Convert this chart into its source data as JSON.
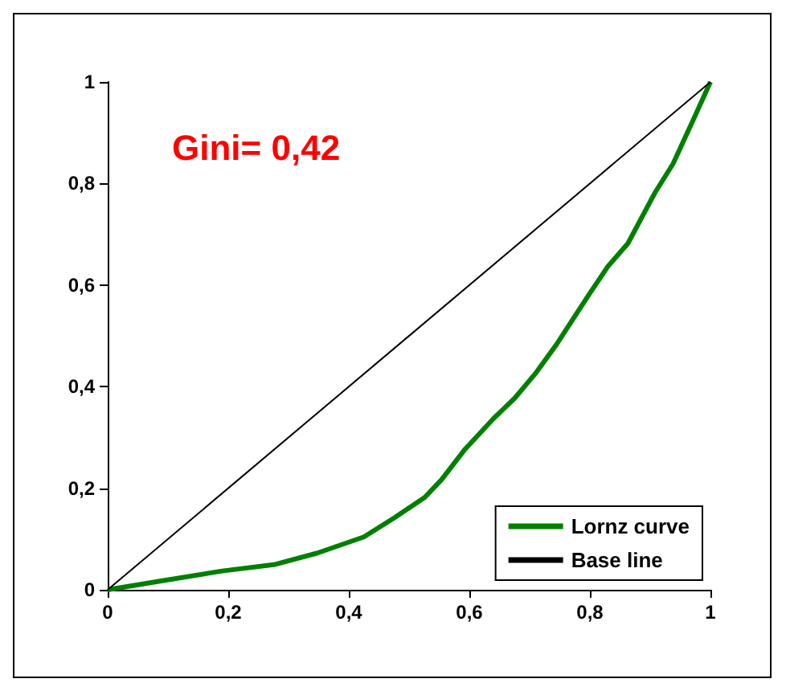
{
  "chart_data": {
    "type": "line",
    "annotations": [
      "Gini= 0,42"
    ],
    "xlim": [
      0,
      1
    ],
    "ylim": [
      0,
      1
    ],
    "xticks": [
      0,
      {
        "value": 0.2,
        "label": "0,2"
      },
      {
        "value": 0.4,
        "label": "0,4"
      },
      {
        "value": 0.6,
        "label": "0,6"
      },
      {
        "value": 0.8,
        "label": "0,8"
      },
      1
    ],
    "yticks": [
      0,
      {
        "value": 0.2,
        "label": "0,2"
      },
      {
        "value": 0.4,
        "label": "0,4"
      },
      {
        "value": 0.6,
        "label": "0,6"
      },
      {
        "value": 0.8,
        "label": "0,8"
      },
      1
    ],
    "grid": false,
    "legend": "bottom right",
    "marker": "none",
    "series": [
      {
        "name": "Lornz curve",
        "color": "#008000",
        "x": [
          0,
          0.097,
          0.19,
          0.278,
          0.347,
          0.425,
          0.476,
          0.526,
          0.554,
          0.593,
          0.64,
          0.675,
          0.709,
          0.744,
          0.796,
          0.83,
          0.863,
          0.908,
          0.938,
          0.972,
          1
        ],
        "values": [
          0,
          0.019,
          0.037,
          0.05,
          0.072,
          0.104,
          0.142,
          0.182,
          0.217,
          0.277,
          0.337,
          0.377,
          0.425,
          0.482,
          0.577,
          0.637,
          0.682,
          0.782,
          0.839,
          0.927,
          1
        ]
      },
      {
        "name": "Base line",
        "color": "#000000",
        "x": [
          0,
          1
        ],
        "values": [
          0,
          1
        ]
      }
    ]
  }
}
